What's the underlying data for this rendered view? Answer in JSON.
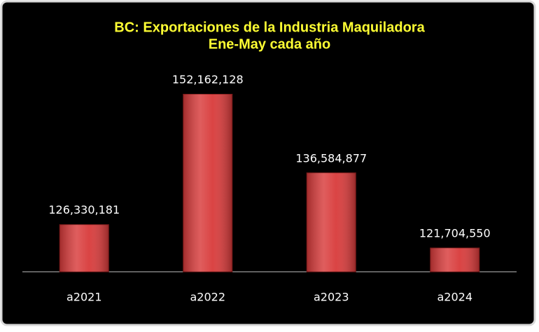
{
  "chart_data": {
    "type": "bar",
    "title": "BC: Exportaciones de la Industria Maquiladora",
    "subtitle": "Ene-May cada año",
    "categories": [
      "a2021",
      "a2022",
      "a2023",
      "a2024"
    ],
    "values": [
      126330181,
      152162128,
      136584877,
      121704550
    ],
    "value_labels": [
      "126,330,181",
      "152,162,128",
      "136,584,877",
      "121,704,550"
    ],
    "color": "#d83a3a",
    "ylim": [
      117000000,
      160000000
    ]
  }
}
